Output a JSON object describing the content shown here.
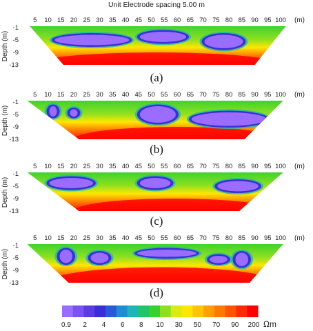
{
  "title": "Unit Electrode spacing 5.00 m",
  "chart_data": [
    {
      "type": "heatmap",
      "panel_label": "(a)",
      "x_ticks": [
        5,
        10,
        15,
        20,
        25,
        30,
        35,
        40,
        45,
        50,
        55,
        60,
        65,
        70,
        75,
        80,
        85,
        90,
        95,
        100
      ],
      "x_unit": "(m)",
      "y_ticks": [
        -1,
        -5,
        -9,
        -13
      ],
      "ylabel": "Depth (m)",
      "low_resistivity_zones": [
        {
          "x": [
            12,
            42
          ],
          "depth": [
            -3,
            -7
          ]
        },
        {
          "x": [
            45,
            64
          ],
          "depth": [
            -2,
            -6
          ]
        },
        {
          "x": [
            70,
            86
          ],
          "depth": [
            -3,
            -8
          ]
        }
      ],
      "high_resistivity_zones": [
        {
          "x": [
            4,
            100
          ],
          "depth": [
            -9,
            -13
          ]
        }
      ]
    },
    {
      "type": "heatmap",
      "panel_label": "(b)",
      "x_ticks": [
        5,
        10,
        15,
        20,
        25,
        30,
        35,
        40,
        45,
        50,
        55,
        60,
        65,
        70,
        75,
        80,
        85,
        90,
        95,
        100
      ],
      "x_unit": "(m)",
      "y_ticks": [
        -1,
        -5,
        -9,
        -13
      ],
      "ylabel": "Depth (m)",
      "low_resistivity_zones": [
        {
          "x": [
            10,
            14
          ],
          "depth": [
            -2,
            -6
          ]
        },
        {
          "x": [
            18,
            22
          ],
          "depth": [
            -3,
            -6
          ]
        },
        {
          "x": [
            45,
            60
          ],
          "depth": [
            -2,
            -8
          ]
        },
        {
          "x": [
            65,
            95
          ],
          "depth": [
            -4,
            -9
          ]
        }
      ],
      "high_resistivity_zones": [
        {
          "x": [
            20,
            100
          ],
          "depth": [
            -9,
            -13
          ]
        }
      ]
    },
    {
      "type": "heatmap",
      "panel_label": "(c)",
      "x_ticks": [
        5,
        10,
        15,
        20,
        25,
        30,
        35,
        40,
        45,
        50,
        55,
        60,
        65,
        70,
        75,
        80,
        85,
        90,
        95,
        100
      ],
      "x_unit": "(m)",
      "y_ticks": [
        -1,
        -5,
        -9,
        -13
      ],
      "ylabel": "Depth (m)",
      "low_resistivity_zones": [
        {
          "x": [
            10,
            28
          ],
          "depth": [
            -2,
            -6
          ]
        },
        {
          "x": [
            45,
            58
          ],
          "depth": [
            -2,
            -6
          ]
        },
        {
          "x": [
            75,
            92
          ],
          "depth": [
            -3,
            -7
          ]
        }
      ],
      "high_resistivity_zones": [
        {
          "x": [
            20,
            98
          ],
          "depth": [
            -9,
            -13
          ]
        }
      ]
    },
    {
      "type": "heatmap",
      "panel_label": "(d)",
      "x_ticks": [
        5,
        10,
        15,
        20,
        25,
        30,
        35,
        40,
        45,
        50,
        55,
        60,
        65,
        70,
        75,
        80,
        85,
        90,
        95,
        100
      ],
      "x_unit": "(m)",
      "y_ticks": [
        -1,
        -5,
        -9,
        -13
      ],
      "ylabel": "Depth (m)",
      "low_resistivity_zones": [
        {
          "x": [
            14,
            20
          ],
          "depth": [
            -2,
            -7
          ]
        },
        {
          "x": [
            26,
            34
          ],
          "depth": [
            -3,
            -7
          ]
        },
        {
          "x": [
            44,
            68
          ],
          "depth": [
            -2,
            -5
          ]
        },
        {
          "x": [
            72,
            80
          ],
          "depth": [
            -4,
            -7
          ]
        },
        {
          "x": [
            82,
            88
          ],
          "depth": [
            -3,
            -8
          ]
        }
      ],
      "high_resistivity_zones": [
        {
          "x": [
            10,
            98
          ],
          "depth": [
            -8,
            -13
          ]
        }
      ]
    }
  ],
  "colorbar": {
    "tick_labels": [
      "0.9",
      "2",
      "4",
      "6",
      "8",
      "10",
      "30",
      "50",
      "70",
      "90",
      "200"
    ],
    "unit": "Ωm",
    "colors": [
      "#9a6cff",
      "#7a52f2",
      "#5a3ce0",
      "#3a2fd6",
      "#2b5ad9",
      "#1d8ed6",
      "#1fb4b8",
      "#22c46a",
      "#36d12f",
      "#8ee01f",
      "#d9ec12",
      "#ffe600",
      "#ffc400",
      "#ff9f00",
      "#ff7a00",
      "#ff5400",
      "#ff2a00",
      "#ff0000"
    ]
  }
}
